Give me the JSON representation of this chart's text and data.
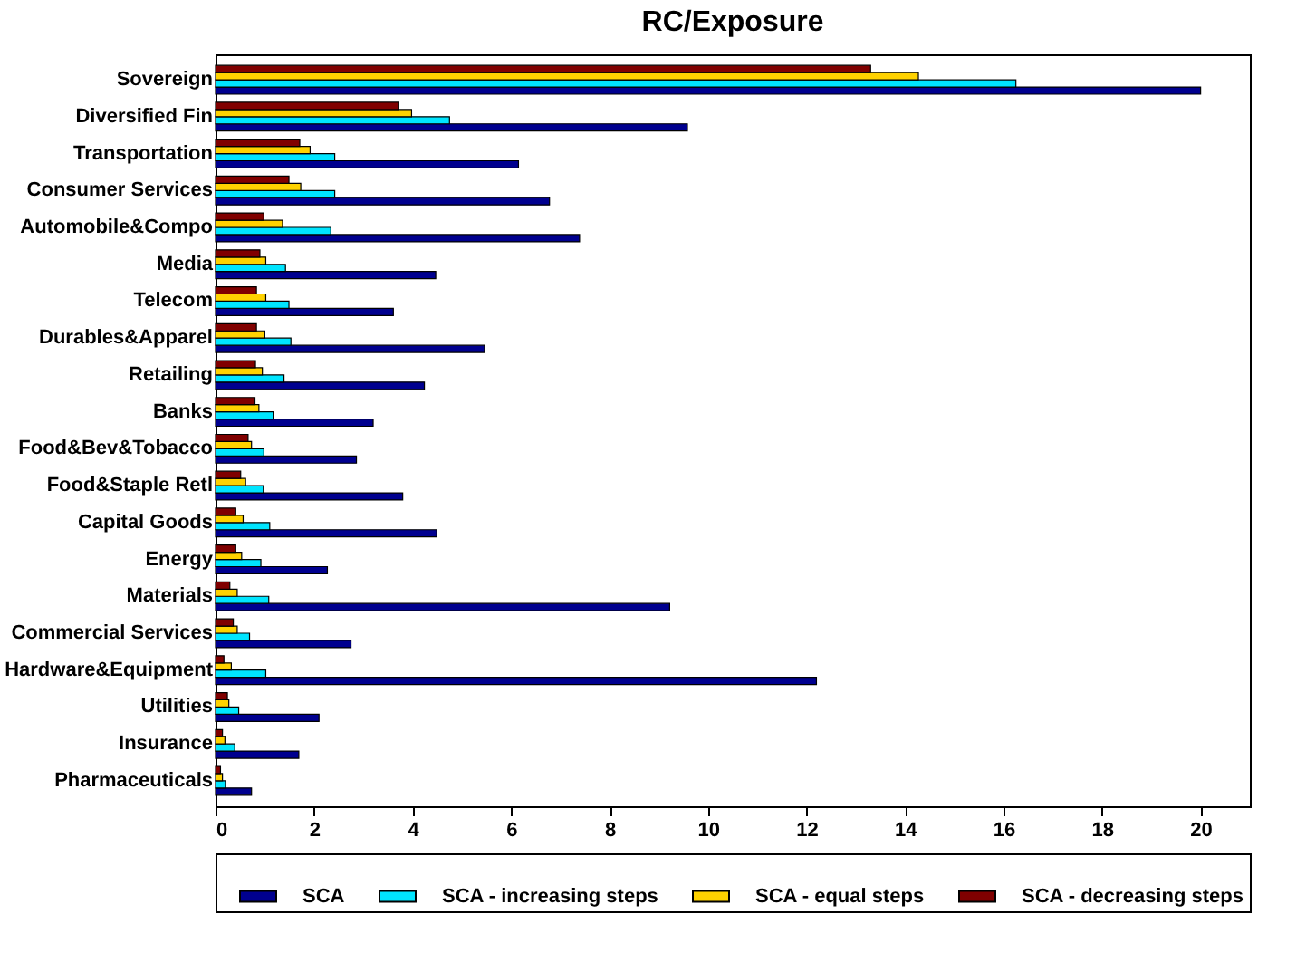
{
  "chart_data": {
    "type": "bar",
    "orientation": "horizontal",
    "title": "RC/Exposure",
    "categories": [
      "Sovereign",
      "Diversified Fin",
      "Transportation",
      "Consumer Services",
      "Automobile&Compo",
      "Media",
      "Telecom",
      "Durables&Apparel",
      "Retailing",
      "Banks",
      "Food&Bev&Tobacco",
      "Food&Staple Retl",
      "Capital Goods",
      "Energy",
      "Materials",
      "Commercial Services",
      "Hardware&Equipment",
      "Utilities",
      "Insurance",
      "Pharmaceuticals"
    ],
    "series": [
      {
        "name": "SCA",
        "color": "#00008f",
        "values": [
          20.0,
          9.58,
          6.15,
          6.78,
          7.39,
          4.47,
          3.61,
          5.46,
          4.24,
          3.2,
          2.86,
          3.8,
          4.49,
          2.27,
          9.22,
          2.75,
          12.2,
          2.1,
          1.69,
          0.73
        ]
      },
      {
        "name": "SCA - increasing steps",
        "color": "#00e5ff",
        "values": [
          16.25,
          4.75,
          2.42,
          2.42,
          2.34,
          1.42,
          1.49,
          1.53,
          1.39,
          1.17,
          0.98,
          0.97,
          1.1,
          0.92,
          1.08,
          0.69,
          1.02,
          0.47,
          0.39,
          0.2
        ]
      },
      {
        "name": "SCA - equal steps",
        "color": "#ffd200",
        "values": [
          14.27,
          3.98,
          1.92,
          1.73,
          1.36,
          1.02,
          1.02,
          1.0,
          0.95,
          0.88,
          0.73,
          0.61,
          0.56,
          0.53,
          0.44,
          0.44,
          0.32,
          0.27,
          0.19,
          0.14
        ]
      },
      {
        "name": "SCA - decreasing steps",
        "color": "#800000",
        "values": [
          13.3,
          3.71,
          1.71,
          1.49,
          0.98,
          0.9,
          0.83,
          0.83,
          0.81,
          0.8,
          0.66,
          0.51,
          0.41,
          0.41,
          0.29,
          0.36,
          0.17,
          0.24,
          0.14,
          0.1
        ]
      }
    ],
    "xlim": [
      0,
      21
    ],
    "xticks": [
      0,
      2,
      4,
      6,
      8,
      10,
      12,
      14,
      16,
      18,
      20
    ],
    "grid": false,
    "legend": "bottom"
  }
}
